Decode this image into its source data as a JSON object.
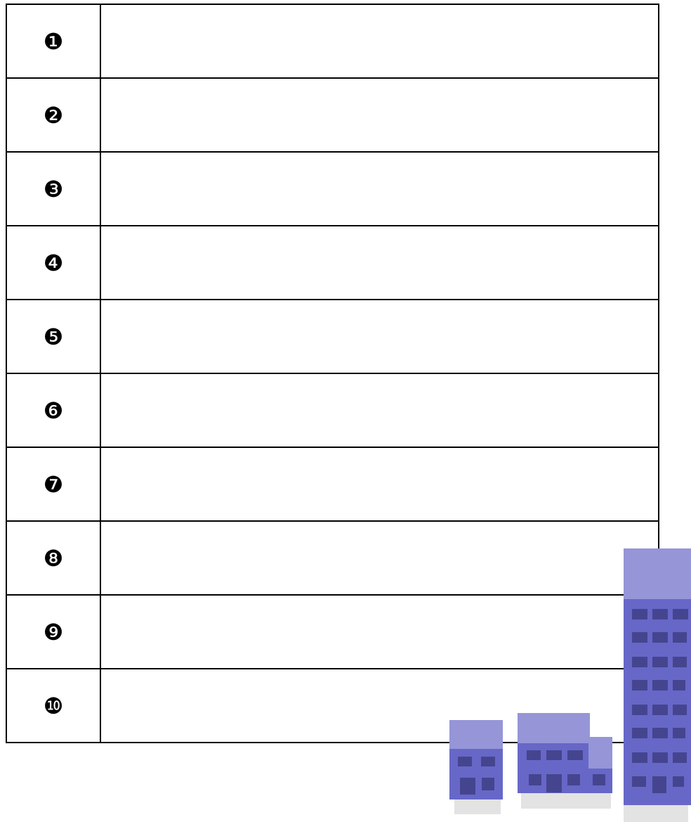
{
  "table": {
    "rows": [
      [
        "❶"
      ],
      [
        "❷"
      ],
      [
        "❸"
      ],
      [
        "❹"
      ],
      [
        "❺"
      ],
      [
        "❻"
      ],
      [
        "❼"
      ],
      [
        "❽"
      ],
      [
        "❾"
      ],
      [
        "❿"
      ]
    ]
  }
}
